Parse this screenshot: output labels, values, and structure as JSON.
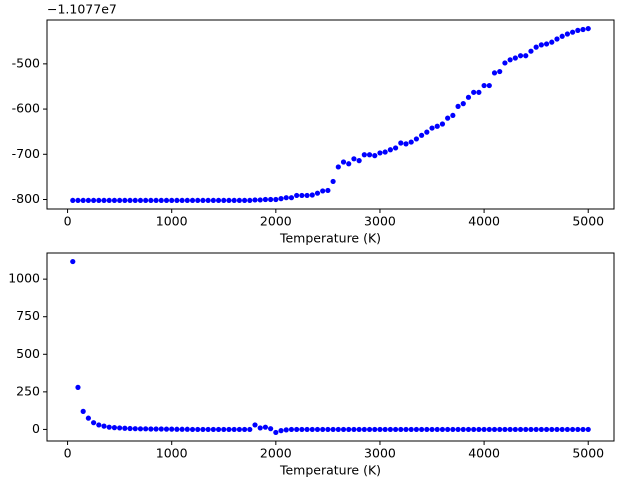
{
  "chart_data": [
    {
      "type": "scatter",
      "x_label": "Temperature (K)",
      "offset_text": "−1.1077e7",
      "color": "#0000ff",
      "xlim": [
        -197.5,
        5247.5
      ],
      "xticks": [
        0,
        1000,
        2000,
        3000,
        4000,
        5000
      ],
      "ylim": [
        -821,
        -403
      ],
      "yticks": [
        -800,
        -700,
        -600,
        -500
      ],
      "x": [
        50,
        100,
        150,
        200,
        250,
        300,
        350,
        400,
        450,
        500,
        550,
        600,
        650,
        700,
        750,
        800,
        850,
        900,
        950,
        1000,
        1050,
        1100,
        1150,
        1200,
        1250,
        1300,
        1350,
        1400,
        1450,
        1500,
        1550,
        1600,
        1650,
        1700,
        1750,
        1800,
        1850,
        1900,
        1950,
        2000,
        2050,
        2100,
        2150,
        2200,
        2250,
        2300,
        2350,
        2400,
        2450,
        2500,
        2550,
        2600,
        2650,
        2700,
        2750,
        2800,
        2850,
        2900,
        2950,
        3000,
        3050,
        3100,
        3150,
        3200,
        3250,
        3300,
        3350,
        3400,
        3450,
        3500,
        3550,
        3600,
        3650,
        3700,
        3750,
        3800,
        3850,
        3900,
        3950,
        4000,
        4050,
        4100,
        4150,
        4200,
        4250,
        4300,
        4350,
        4400,
        4450,
        4500,
        4550,
        4600,
        4650,
        4700,
        4750,
        4800,
        4850,
        4900,
        4950,
        5000
      ],
      "values": [
        -802,
        -802,
        -802,
        -802,
        -802,
        -802,
        -802,
        -802,
        -802,
        -802,
        -802,
        -802,
        -802,
        -802,
        -802,
        -802,
        -802,
        -802,
        -802,
        -802,
        -802,
        -802,
        -802,
        -802,
        -802,
        -802,
        -802,
        -802,
        -802,
        -802,
        -802,
        -802,
        -802,
        -802,
        -802,
        -801,
        -801,
        -800,
        -800,
        -800,
        -798,
        -796,
        -796,
        -791,
        -791,
        -791,
        -790,
        -786,
        -781,
        -780,
        -760,
        -728,
        -717,
        -721,
        -710,
        -714,
        -701,
        -701,
        -703,
        -697,
        -695,
        -690,
        -686,
        -675,
        -677,
        -673,
        -666,
        -658,
        -651,
        -642,
        -638,
        -633,
        -620,
        -614,
        -594,
        -588,
        -574,
        -563,
        -563,
        -548,
        -548,
        -520,
        -517,
        -498,
        -491,
        -487,
        -482,
        -482,
        -472,
        -463,
        -458,
        -456,
        -452,
        -445,
        -439,
        -434,
        -430,
        -426,
        -424,
        -422
      ]
    },
    {
      "type": "scatter",
      "x_label": "Temperature (K)",
      "color": "#0000ff",
      "xlim": [
        -197.5,
        5247.5
      ],
      "xticks": [
        0,
        1000,
        2000,
        3000,
        4000,
        5000
      ],
      "ylim": [
        -77,
        1174
      ],
      "yticks": [
        0,
        250,
        500,
        750,
        1000
      ],
      "x": [
        50,
        100,
        150,
        200,
        250,
        300,
        350,
        400,
        450,
        500,
        550,
        600,
        650,
        700,
        750,
        800,
        850,
        900,
        950,
        1000,
        1050,
        1100,
        1150,
        1200,
        1250,
        1300,
        1350,
        1400,
        1450,
        1500,
        1550,
        1600,
        1650,
        1700,
        1750,
        1800,
        1850,
        1900,
        1950,
        2000,
        2050,
        2100,
        2150,
        2200,
        2250,
        2300,
        2350,
        2400,
        2450,
        2500,
        2550,
        2600,
        2650,
        2700,
        2750,
        2800,
        2850,
        2900,
        2950,
        3000,
        3050,
        3100,
        3150,
        3200,
        3250,
        3300,
        3350,
        3400,
        3450,
        3500,
        3550,
        3600,
        3650,
        3700,
        3750,
        3800,
        3850,
        3900,
        3950,
        4000,
        4050,
        4100,
        4150,
        4200,
        4250,
        4300,
        4350,
        4400,
        4450,
        4500,
        4550,
        4600,
        4650,
        4700,
        4750,
        4800,
        4850,
        4900,
        4950,
        5000
      ],
      "values": [
        1117,
        280,
        120,
        75,
        45,
        30,
        22,
        15,
        12,
        10,
        8,
        6,
        5,
        4,
        4,
        3,
        3,
        3,
        2,
        2,
        1,
        1,
        1,
        0,
        0,
        0,
        0,
        0,
        0,
        0,
        0,
        0,
        0,
        0,
        0,
        30,
        10,
        15,
        5,
        -20,
        -8,
        -3,
        0,
        0,
        0,
        0,
        0,
        0,
        0,
        0,
        0,
        0,
        0,
        0,
        0,
        0,
        0,
        0,
        0,
        0,
        0,
        0,
        0,
        0,
        0,
        0,
        0,
        0,
        0,
        0,
        0,
        0,
        0,
        0,
        0,
        0,
        0,
        0,
        0,
        0,
        0,
        0,
        0,
        0,
        0,
        0,
        0,
        0,
        0,
        0,
        0,
        0,
        0,
        0,
        0,
        0,
        0,
        0,
        0,
        0
      ]
    }
  ]
}
